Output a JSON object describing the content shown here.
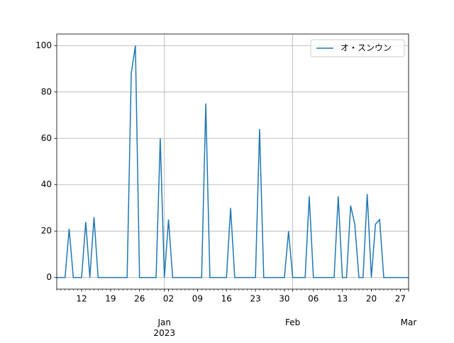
{
  "chart_data": {
    "type": "line",
    "x": [
      "2022-12-06",
      "2022-12-07",
      "2022-12-08",
      "2022-12-09",
      "2022-12-10",
      "2022-12-11",
      "2022-12-12",
      "2022-12-13",
      "2022-12-14",
      "2022-12-15",
      "2022-12-16",
      "2022-12-17",
      "2022-12-18",
      "2022-12-19",
      "2022-12-20",
      "2022-12-21",
      "2022-12-22",
      "2022-12-23",
      "2022-12-24",
      "2022-12-25",
      "2022-12-26",
      "2022-12-27",
      "2022-12-28",
      "2022-12-29",
      "2022-12-30",
      "2022-12-31",
      "2023-01-01",
      "2023-01-02",
      "2023-01-03",
      "2023-01-04",
      "2023-01-05",
      "2023-01-06",
      "2023-01-07",
      "2023-01-08",
      "2023-01-09",
      "2023-01-10",
      "2023-01-11",
      "2023-01-12",
      "2023-01-13",
      "2023-01-14",
      "2023-01-15",
      "2023-01-16",
      "2023-01-17",
      "2023-01-18",
      "2023-01-19",
      "2023-01-20",
      "2023-01-21",
      "2023-01-22",
      "2023-01-23",
      "2023-01-24",
      "2023-01-25",
      "2023-01-26",
      "2023-01-27",
      "2023-01-28",
      "2023-01-29",
      "2023-01-30",
      "2023-01-31",
      "2023-02-01",
      "2023-02-02",
      "2023-02-03",
      "2023-02-04",
      "2023-02-05",
      "2023-02-06",
      "2023-02-07",
      "2023-02-08",
      "2023-02-09",
      "2023-02-10",
      "2023-02-11",
      "2023-02-12",
      "2023-02-13",
      "2023-02-14",
      "2023-02-15",
      "2023-02-16",
      "2023-02-17",
      "2023-02-18",
      "2023-02-19",
      "2023-02-20",
      "2023-02-21",
      "2023-02-22",
      "2023-02-23",
      "2023-02-24",
      "2023-02-25",
      "2023-02-26",
      "2023-02-27",
      "2023-02-28",
      "2023-03-01"
    ],
    "series": [
      {
        "name": "オ・スンウン",
        "color": "#1f77b4",
        "values": [
          0,
          0,
          0,
          21,
          0,
          0,
          0,
          24,
          0,
          26,
          0,
          0,
          0,
          0,
          0,
          0,
          0,
          0,
          88,
          100,
          0,
          0,
          0,
          0,
          0,
          60,
          0,
          25,
          0,
          0,
          0,
          0,
          0,
          0,
          0,
          0,
          75,
          0,
          0,
          0,
          0,
          0,
          30,
          0,
          0,
          0,
          0,
          0,
          0,
          64,
          0,
          0,
          0,
          0,
          0,
          0,
          20,
          0,
          0,
          0,
          0,
          35,
          0,
          0,
          0,
          0,
          0,
          0,
          35,
          0,
          0,
          31,
          23,
          0,
          0,
          36,
          0,
          23,
          25,
          0,
          0,
          0,
          0,
          0,
          0,
          0
        ]
      }
    ],
    "xlim": [
      "2022-12-06",
      "2023-03-01"
    ],
    "xticks": [
      {
        "value": "2023-01-01",
        "label": "Jan\n2023"
      },
      {
        "value": "2023-02-01",
        "label": "Feb"
      },
      {
        "value": "2023-03-01",
        "label": "Mar"
      }
    ],
    "xticks_minor": [
      {
        "value": "2022-12-12",
        "label": "12"
      },
      {
        "value": "2022-12-19",
        "label": "19"
      },
      {
        "value": "2022-12-26",
        "label": "26"
      },
      {
        "value": "2023-01-02",
        "label": "02"
      },
      {
        "value": "2023-01-09",
        "label": "09"
      },
      {
        "value": "2023-01-16",
        "label": "16"
      },
      {
        "value": "2023-01-23",
        "label": "23"
      },
      {
        "value": "2023-01-30",
        "label": "30"
      },
      {
        "value": "2023-02-06",
        "label": "06"
      },
      {
        "value": "2023-02-13",
        "label": "13"
      },
      {
        "value": "2023-02-20",
        "label": "20"
      },
      {
        "value": "2023-02-27",
        "label": "27"
      }
    ],
    "ylim": [
      -5,
      105
    ],
    "yticks": [
      0,
      20,
      40,
      60,
      80,
      100
    ],
    "grid": true,
    "legend": "upper right"
  }
}
